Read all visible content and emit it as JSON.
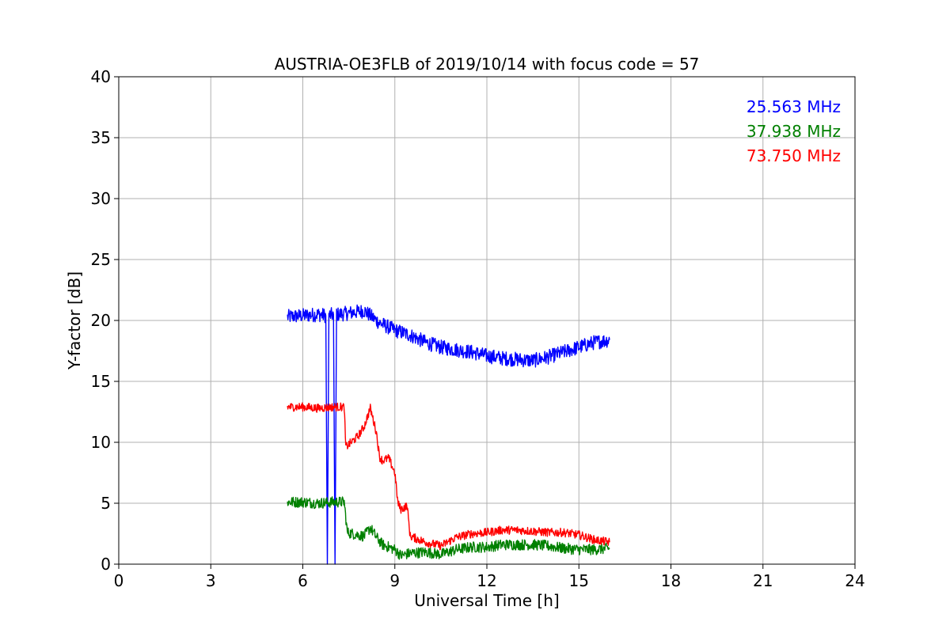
{
  "chart_data": {
    "type": "line",
    "title": "AUSTRIA-OE3FLB of 2019/10/14 with focus code = 57",
    "xlabel": "Universal Time [h]",
    "ylabel": "Y-factor [dB]",
    "xlim": [
      0,
      24
    ],
    "ylim": [
      0,
      40
    ],
    "xticks": [
      0,
      3,
      6,
      9,
      12,
      15,
      18,
      21,
      24
    ],
    "yticks": [
      0,
      5,
      10,
      15,
      20,
      25,
      30,
      35,
      40
    ],
    "grid": true,
    "legend_position": "top-right",
    "series": [
      {
        "name": "25.563 MHz",
        "color": "#0000ff",
        "noise": 0.6,
        "x": [
          5.5,
          6.0,
          6.5,
          6.75,
          6.8,
          6.85,
          7.0,
          7.05,
          7.1,
          7.15,
          7.5,
          8.0,
          8.5,
          9.0,
          9.5,
          10.0,
          10.5,
          11.0,
          11.5,
          12.0,
          12.5,
          13.0,
          13.5,
          14.0,
          14.5,
          15.0,
          15.5,
          16.0
        ],
        "y": [
          20.3,
          20.4,
          20.5,
          20.4,
          0.0,
          20.4,
          20.5,
          0.0,
          20.5,
          20.5,
          20.6,
          20.8,
          19.8,
          19.2,
          18.8,
          18.2,
          17.8,
          17.6,
          17.4,
          17.1,
          16.9,
          16.8,
          16.7,
          17.0,
          17.4,
          17.8,
          18.2,
          18.4
        ]
      },
      {
        "name": "37.938 MHz",
        "color": "#008000",
        "noise": 0.45,
        "x": [
          5.5,
          6.0,
          6.5,
          7.0,
          7.35,
          7.45,
          7.8,
          8.0,
          8.2,
          8.4,
          8.6,
          8.8,
          9.0,
          9.2,
          9.5,
          10.0,
          10.5,
          11.0,
          11.5,
          12.0,
          12.5,
          13.0,
          13.5,
          14.0,
          14.5,
          15.0,
          15.5,
          16.0
        ],
        "y": [
          5.1,
          5.1,
          5.0,
          5.1,
          5.1,
          2.6,
          2.4,
          2.3,
          3.0,
          2.2,
          1.6,
          1.4,
          1.2,
          0.7,
          0.9,
          1.0,
          0.8,
          1.2,
          1.4,
          1.4,
          1.6,
          1.6,
          1.6,
          1.5,
          1.3,
          1.2,
          1.2,
          1.3
        ]
      },
      {
        "name": "73.750 MHz",
        "color": "#ff0000",
        "noise": 0.35,
        "x": [
          5.5,
          6.0,
          6.5,
          7.0,
          7.35,
          7.4,
          7.8,
          8.0,
          8.2,
          8.4,
          8.5,
          8.6,
          8.8,
          9.0,
          9.1,
          9.2,
          9.4,
          9.5,
          10.0,
          10.5,
          11.0,
          11.5,
          12.0,
          12.5,
          13.0,
          13.5,
          14.0,
          14.5,
          15.0,
          15.5,
          16.0
        ],
        "y": [
          12.9,
          12.9,
          12.8,
          12.9,
          12.9,
          9.6,
          10.5,
          11.3,
          12.8,
          10.8,
          8.8,
          8.5,
          8.7,
          7.5,
          5.0,
          4.5,
          4.8,
          2.3,
          1.8,
          1.5,
          2.2,
          2.5,
          2.6,
          2.8,
          2.8,
          2.7,
          2.6,
          2.6,
          2.4,
          2.0,
          1.8
        ]
      }
    ]
  }
}
